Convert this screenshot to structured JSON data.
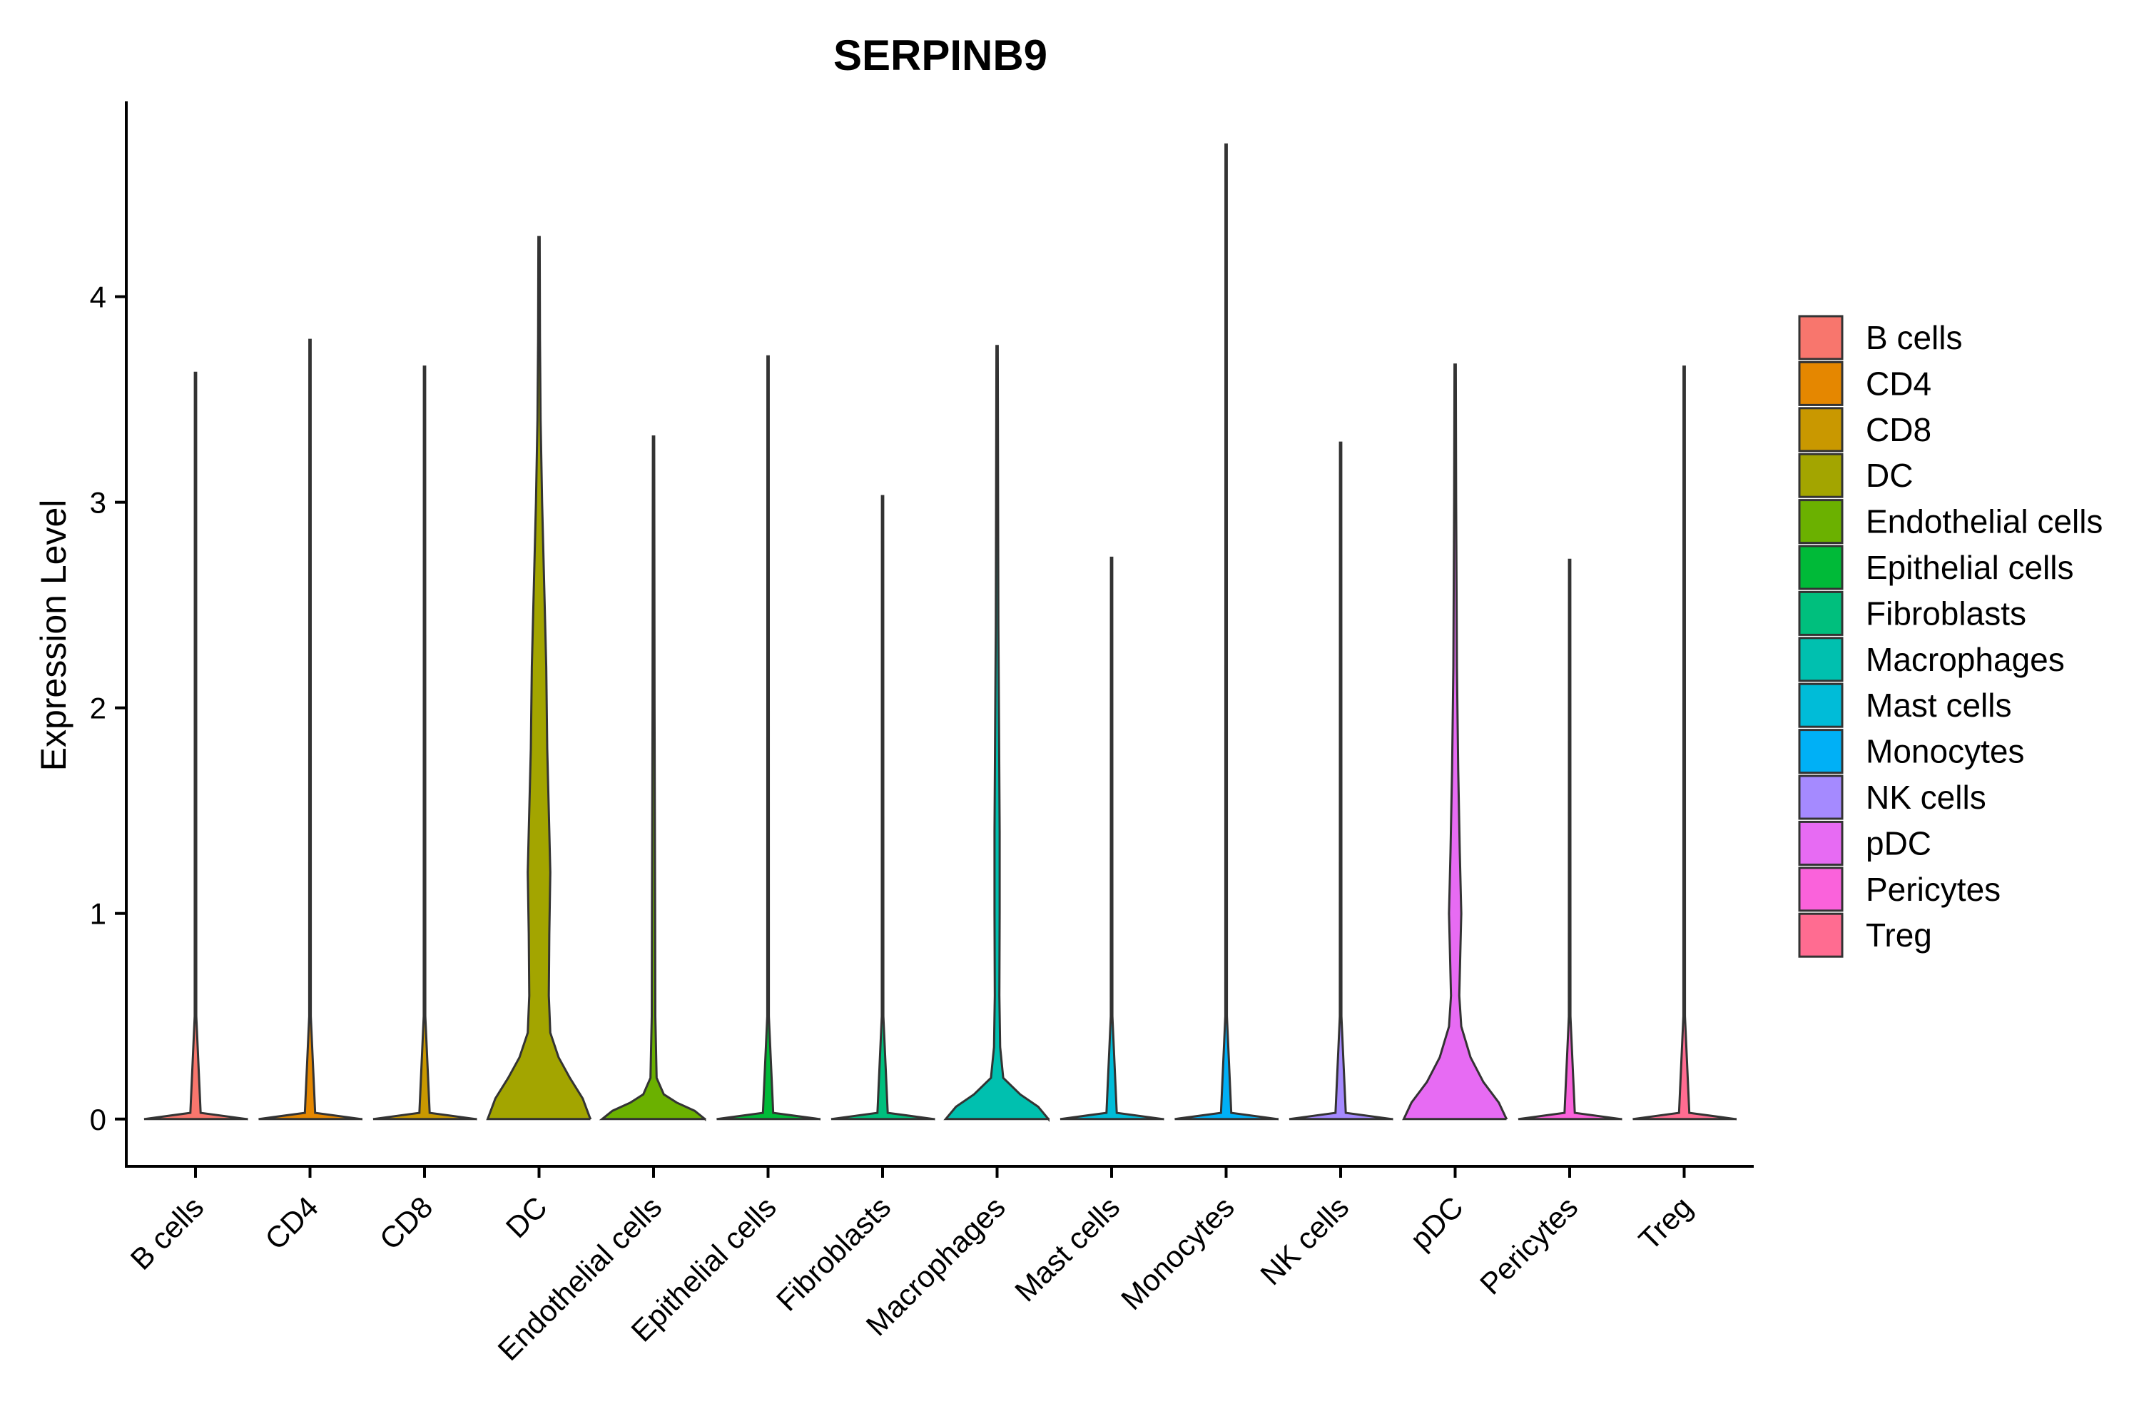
{
  "chart_data": {
    "type": "violin",
    "title": "SERPINB9",
    "xlabel": "",
    "ylabel": "Expression Level",
    "ylim": [
      -0.23,
      4.95
    ],
    "yticks": [
      "0",
      "1",
      "2",
      "3",
      "4"
    ],
    "grid": false,
    "legend_position": "right",
    "categories": [
      "B cells",
      "CD4",
      "CD8",
      "DC",
      "Endothelial cells",
      "Epithelial cells",
      "Fibroblasts",
      "Macrophages",
      "Mast cells",
      "Monocytes",
      "NK cells",
      "pDC",
      "Pericytes",
      "Treg"
    ],
    "colors": [
      "#F8766D",
      "#E58700",
      "#C99800",
      "#A3A500",
      "#6BB100",
      "#00BA38",
      "#00BF7D",
      "#00C0AF",
      "#00BCD8",
      "#00B0F6",
      "#A58AFF",
      "#E76BF3",
      "#FA62DB",
      "#FF6C91"
    ],
    "series": [
      {
        "name": "B cells",
        "max": 3.63,
        "profile": [
          [
            0,
            1.0
          ],
          [
            0.03,
            0.1
          ],
          [
            0.5,
            0.015
          ],
          [
            3.63,
            0.012
          ]
        ]
      },
      {
        "name": "CD4",
        "max": 3.79,
        "profile": [
          [
            0,
            1.0
          ],
          [
            0.03,
            0.1
          ],
          [
            0.5,
            0.015
          ],
          [
            3.79,
            0.012
          ]
        ]
      },
      {
        "name": "CD8",
        "max": 3.66,
        "profile": [
          [
            0,
            1.0
          ],
          [
            0.03,
            0.1
          ],
          [
            0.5,
            0.015
          ],
          [
            3.66,
            0.012
          ]
        ]
      },
      {
        "name": "DC",
        "max": 4.29,
        "profile": [
          [
            0,
            1.0
          ],
          [
            0.1,
            0.85
          ],
          [
            0.2,
            0.6
          ],
          [
            0.3,
            0.38
          ],
          [
            0.42,
            0.22
          ],
          [
            0.6,
            0.19
          ],
          [
            0.9,
            0.2
          ],
          [
            1.2,
            0.22
          ],
          [
            1.4,
            0.2
          ],
          [
            1.8,
            0.16
          ],
          [
            2.2,
            0.14
          ],
          [
            2.6,
            0.1
          ],
          [
            3.0,
            0.06
          ],
          [
            3.4,
            0.03
          ],
          [
            3.8,
            0.018
          ],
          [
            4.29,
            0.012
          ]
        ]
      },
      {
        "name": "Endothelial cells",
        "max": 3.32,
        "profile": [
          [
            0,
            1.0
          ],
          [
            0.04,
            0.8
          ],
          [
            0.08,
            0.45
          ],
          [
            0.12,
            0.2
          ],
          [
            0.2,
            0.06
          ],
          [
            0.5,
            0.035
          ],
          [
            1.0,
            0.03
          ],
          [
            1.5,
            0.025
          ],
          [
            2.0,
            0.02
          ],
          [
            3.32,
            0.012
          ]
        ]
      },
      {
        "name": "Epithelial cells",
        "max": 3.71,
        "profile": [
          [
            0,
            1.0
          ],
          [
            0.03,
            0.1
          ],
          [
            0.5,
            0.015
          ],
          [
            3.71,
            0.012
          ]
        ]
      },
      {
        "name": "Fibroblasts",
        "max": 3.03,
        "profile": [
          [
            0,
            1.0
          ],
          [
            0.03,
            0.1
          ],
          [
            0.5,
            0.015
          ],
          [
            3.03,
            0.012
          ]
        ]
      },
      {
        "name": "Macrophages",
        "max": 3.76,
        "profile": [
          [
            0,
            1.0
          ],
          [
            0.06,
            0.8
          ],
          [
            0.12,
            0.45
          ],
          [
            0.2,
            0.12
          ],
          [
            0.35,
            0.06
          ],
          [
            0.6,
            0.045
          ],
          [
            1.0,
            0.05
          ],
          [
            1.4,
            0.05
          ],
          [
            1.8,
            0.04
          ],
          [
            2.4,
            0.025
          ],
          [
            3.76,
            0.012
          ]
        ]
      },
      {
        "name": "Mast cells",
        "max": 2.73,
        "profile": [
          [
            0,
            1.0
          ],
          [
            0.03,
            0.1
          ],
          [
            0.5,
            0.015
          ],
          [
            2.73,
            0.012
          ]
        ]
      },
      {
        "name": "Monocytes",
        "max": 4.74,
        "profile": [
          [
            0,
            1.0
          ],
          [
            0.03,
            0.1
          ],
          [
            0.5,
            0.015
          ],
          [
            4.74,
            0.012
          ]
        ]
      },
      {
        "name": "NK cells",
        "max": 3.29,
        "profile": [
          [
            0,
            1.0
          ],
          [
            0.03,
            0.1
          ],
          [
            0.5,
            0.015
          ],
          [
            3.29,
            0.012
          ]
        ]
      },
      {
        "name": "pDC",
        "max": 3.67,
        "profile": [
          [
            0,
            1.0
          ],
          [
            0.08,
            0.85
          ],
          [
            0.18,
            0.55
          ],
          [
            0.3,
            0.3
          ],
          [
            0.45,
            0.12
          ],
          [
            0.6,
            0.08
          ],
          [
            0.8,
            0.1
          ],
          [
            1.0,
            0.12
          ],
          [
            1.3,
            0.09
          ],
          [
            1.7,
            0.06
          ],
          [
            2.2,
            0.035
          ],
          [
            3.0,
            0.02
          ],
          [
            3.67,
            0.012
          ]
        ]
      },
      {
        "name": "Pericytes",
        "max": 2.72,
        "profile": [
          [
            0,
            1.0
          ],
          [
            0.03,
            0.1
          ],
          [
            0.5,
            0.015
          ],
          [
            2.72,
            0.012
          ]
        ]
      },
      {
        "name": "Treg",
        "max": 3.66,
        "profile": [
          [
            0,
            1.0
          ],
          [
            0.03,
            0.1
          ],
          [
            0.5,
            0.015
          ],
          [
            3.66,
            0.012
          ]
        ]
      }
    ]
  }
}
